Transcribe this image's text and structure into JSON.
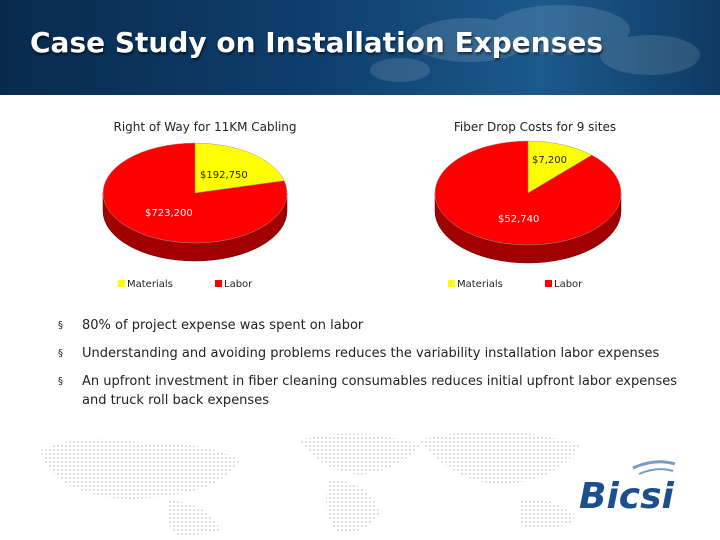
{
  "slide": {
    "title": "Case Study on Installation Expenses",
    "bullets": [
      "80% of project expense was spent on labor",
      "Understanding and avoiding problems reduces the variability installation labor expenses",
      "An upfront investment in fiber cleaning consumables reduces initial upfront labor expenses and  truck roll back expenses"
    ],
    "bullet_symbol": "§"
  },
  "logo": {
    "text": "Bicsi",
    "color": "#1c4f8c"
  },
  "colors": {
    "materials": "#ffff00",
    "labor": "#ff0000",
    "labor_side": "#a00000",
    "materials_side": "#b8b800"
  },
  "chart_data": [
    {
      "type": "pie",
      "title": "Right of Way for 11KM  Cabling",
      "categories": [
        "Materials",
        "Labor"
      ],
      "values": [
        192750,
        723200
      ],
      "data_labels": [
        "$192,750",
        "$723,200"
      ],
      "legend": "bottom"
    },
    {
      "type": "pie",
      "title": "Fiber Drop Costs for 9 sites",
      "categories": [
        "Materials",
        "Labor"
      ],
      "values": [
        7200,
        52740
      ],
      "data_labels": [
        "$7,200",
        "$52,740"
      ],
      "legend": "bottom"
    }
  ]
}
